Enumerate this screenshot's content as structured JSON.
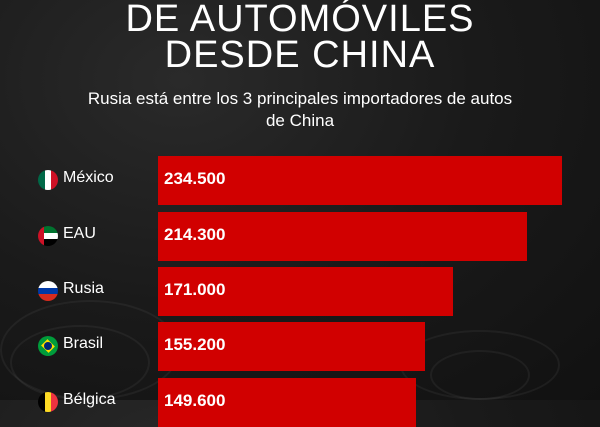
{
  "title_lines": [
    "DE AUTOMÓVILES",
    "DESDE CHINA"
  ],
  "subtitle_lines": [
    "Rusia está entre los 3 principales importadores de autos",
    "de China"
  ],
  "colors": {
    "bar": "#d10000",
    "background": "#1a1a1a",
    "text": "#ffffff"
  },
  "chart_data": {
    "type": "bar",
    "orientation": "horizontal",
    "categories": [
      "México",
      "EAU",
      "Rusia",
      "Brasil",
      "Bélgica"
    ],
    "values": [
      234500,
      214300,
      171000,
      155200,
      149600
    ],
    "data_labels": [
      "234.500",
      "214.300",
      "171.000",
      "155.200",
      "149.600"
    ],
    "flag_icons": [
      "mexico-flag-icon",
      "uae-flag-icon",
      "russia-flag-icon",
      "brazil-flag-icon",
      "belgium-flag-icon"
    ],
    "grid": false
  }
}
